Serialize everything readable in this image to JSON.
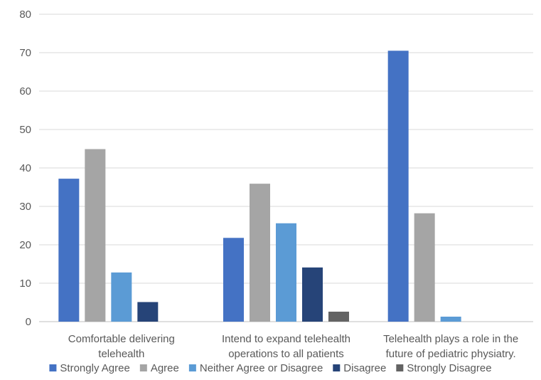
{
  "chart_data": {
    "type": "bar",
    "categories": [
      [
        "Comfortable delivering",
        "telehealth"
      ],
      [
        "Intend to expand telehealth",
        "operations to all patients"
      ],
      [
        "Telehealth plays a role in the",
        "future of pediatric physiatry."
      ]
    ],
    "series": [
      {
        "name": "Strongly Agree",
        "color": "#4472C4",
        "values": [
          37.2,
          21.8,
          70.5
        ]
      },
      {
        "name": "Agree",
        "color": "#A5A5A5",
        "values": [
          44.9,
          35.9,
          28.2
        ]
      },
      {
        "name": "Neither Agree or Disagree",
        "color": "#5B9BD5",
        "values": [
          12.8,
          25.6,
          1.3
        ]
      },
      {
        "name": "Disagree",
        "color": "#264478",
        "values": [
          5.1,
          14.1,
          0
        ]
      },
      {
        "name": "Strongly Disagree",
        "color": "#636363",
        "values": [
          0,
          2.6,
          0
        ]
      }
    ],
    "ylim": [
      0,
      80
    ],
    "yticks": [
      0,
      10,
      20,
      30,
      40,
      50,
      60,
      70,
      80
    ],
    "grid": true,
    "legend": "bottom"
  }
}
